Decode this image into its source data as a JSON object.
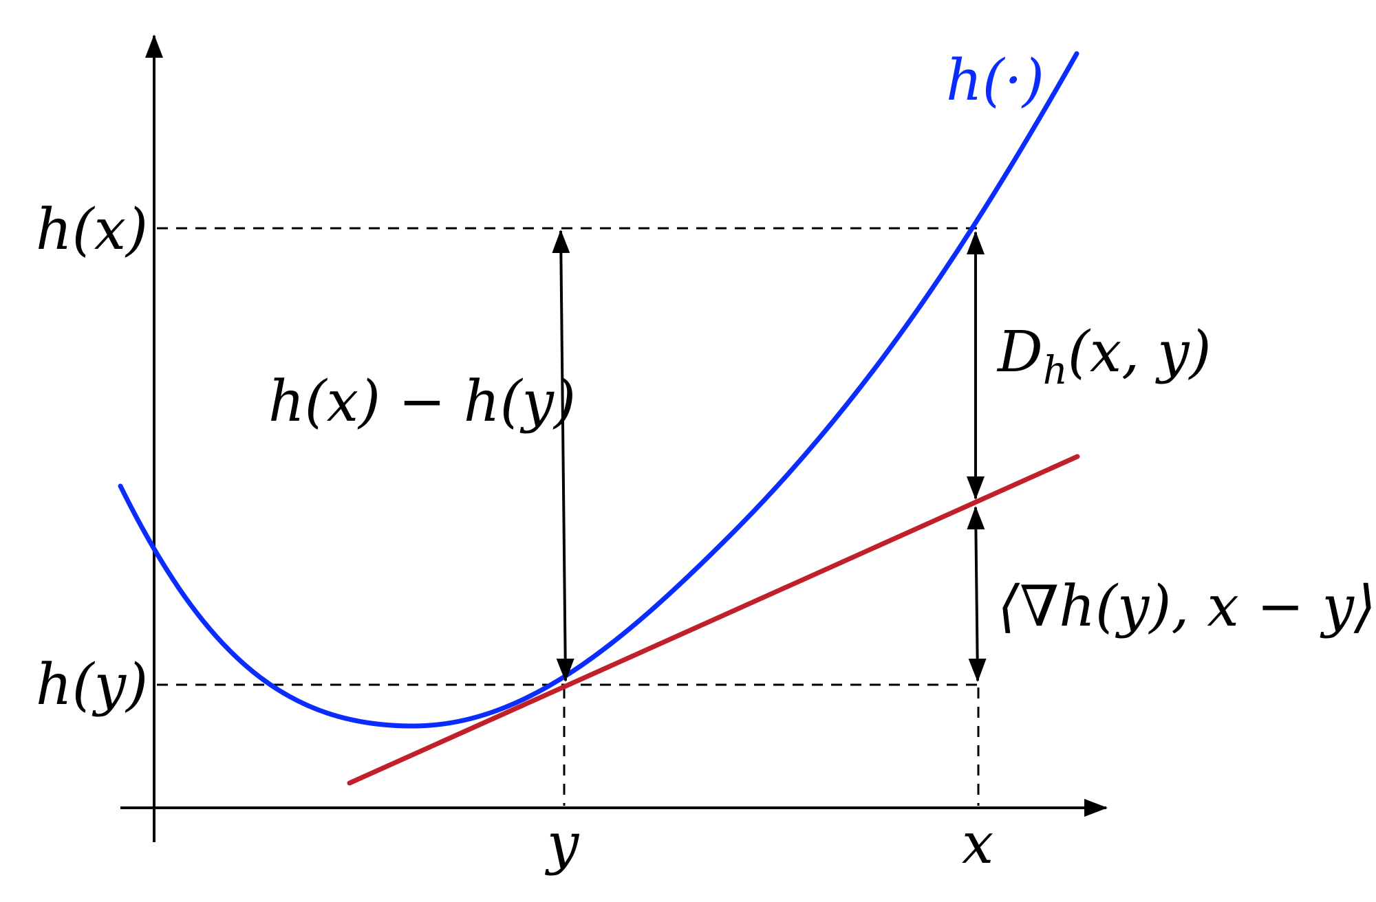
{
  "colors": {
    "curve": "#0a2cff",
    "tangent": "#c0202a",
    "ink": "#000000"
  },
  "labels": {
    "function": "h(·)",
    "h_x": "h(x)",
    "h_y": "h(y)",
    "x_tick": "x",
    "y_tick": "y",
    "difference": "h(x) − h(y)",
    "divergence_D": "D",
    "divergence_sub": "h",
    "divergence_args": "(x, y)",
    "inner_product": "⟨∇h(y), x − y⟩"
  }
}
